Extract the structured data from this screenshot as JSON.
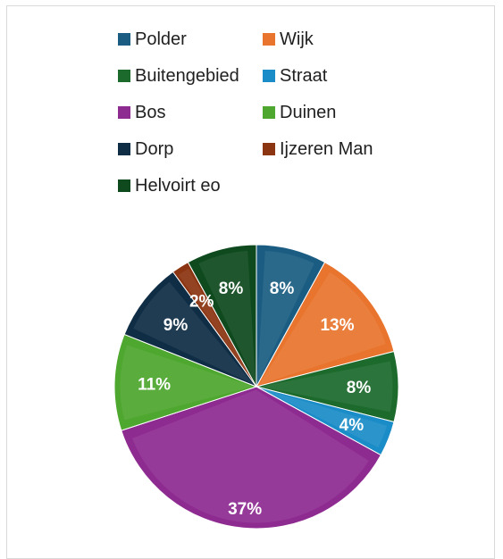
{
  "chart_data": {
    "type": "pie",
    "title": "",
    "legend_position": "top",
    "categories": [
      "Polder",
      "Wijk",
      "Buitengebied",
      "Straat",
      "Bos",
      "Duinen",
      "Dorp",
      "Ijzeren Man",
      "Helvoirt eo"
    ],
    "values": [
      8,
      13,
      8,
      4,
      37,
      11,
      9,
      2,
      8
    ],
    "labels": [
      "8%",
      "13%",
      "8%",
      "4%",
      "37%",
      "11%",
      "9%",
      "2%",
      "8%"
    ],
    "colors": [
      "#1b5d82",
      "#e8742d",
      "#1c6a2c",
      "#1a8cc7",
      "#8e2b91",
      "#4ea72e",
      "#0f2d45",
      "#8c3512",
      "#0e4a1e"
    ],
    "data_label_color": "#ffffff"
  }
}
